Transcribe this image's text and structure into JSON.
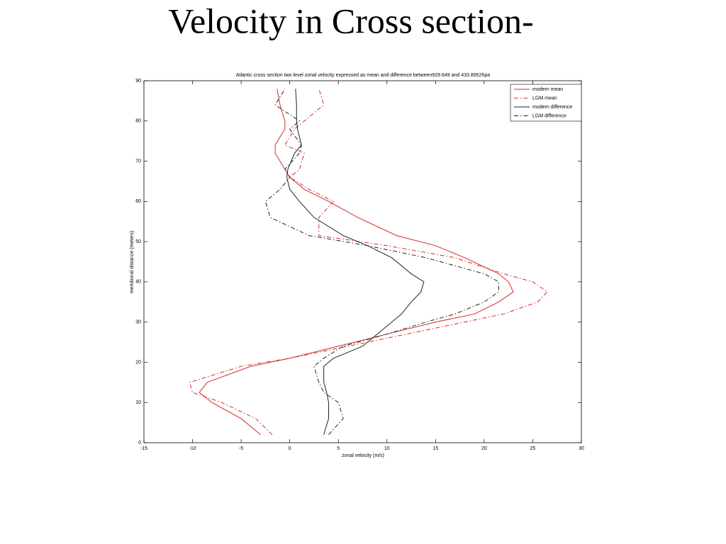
{
  "slide_title": "Velocity in Cross section-",
  "chart_data": {
    "type": "line",
    "title": "Atlantic cross section two level zonal velocity expressed as mean and difference between929.649 and 433.8952hpa",
    "x_label": "zonal velocity (m/s)",
    "y_label": "meridional distance (meters)",
    "xlim": [
      -15,
      30
    ],
    "xticks": [
      -15,
      -10,
      -5,
      0,
      5,
      10,
      15,
      20,
      25,
      30
    ],
    "ylim": [
      0,
      90
    ],
    "yticks": [
      0,
      10,
      20,
      30,
      40,
      50,
      60,
      70,
      80,
      90
    ],
    "legend": "upper right",
    "y": [
      2,
      6,
      10,
      12.5,
      15,
      19,
      21,
      24,
      27,
      30,
      32,
      35,
      37.5,
      40,
      42,
      46,
      49,
      51.5,
      56,
      60,
      63,
      66,
      68,
      72,
      74,
      78,
      80,
      84,
      88
    ],
    "series": [
      {
        "name": "modern mean",
        "color": "#d42a2a",
        "style": "solid",
        "x": [
          -3,
          -5,
          -8,
          -9.3,
          -8.5,
          -4,
          0,
          5,
          10,
          15,
          19,
          21.5,
          23,
          22.5,
          21.5,
          18,
          15,
          11,
          7,
          4,
          1.5,
          0,
          -0.5,
          -1.5,
          -1.5,
          -0.5,
          -0.5,
          -1,
          -1.3
        ]
      },
      {
        "name": "LGM mean",
        "color": "#d42a2a",
        "style": "dashdot",
        "x": [
          -1.8,
          -3.5,
          -7,
          -10,
          -10.3,
          -5,
          0,
          6,
          12,
          18,
          22,
          25.5,
          26.5,
          25,
          22,
          17,
          10,
          3,
          3,
          4.5,
          2,
          0,
          1,
          1.5,
          -0.5,
          0.5,
          1.5,
          3.5,
          3
        ]
      },
      {
        "name": "modern difference",
        "color": "#222222",
        "style": "solid",
        "x": [
          3.5,
          4,
          4,
          3.8,
          3.5,
          3.5,
          4.5,
          7.5,
          9,
          10.5,
          11.5,
          12.5,
          13.5,
          13.8,
          12.5,
          10.5,
          8,
          5.5,
          2.5,
          1,
          0,
          -0.3,
          -0.2,
          0.5,
          1.2,
          0.8,
          0.7,
          0.7,
          0.6
        ]
      },
      {
        "name": "LGM difference",
        "color": "#222222",
        "style": "dashdot",
        "x": [
          4,
          5.5,
          5,
          3.5,
          3,
          2.5,
          3.5,
          5.5,
          10,
          14,
          17,
          20,
          21.5,
          21.5,
          20,
          14,
          8,
          2,
          -2,
          -2.5,
          -1,
          0,
          -0.5,
          1,
          1.2,
          0,
          1,
          -1.5,
          -0.5
        ]
      }
    ]
  }
}
